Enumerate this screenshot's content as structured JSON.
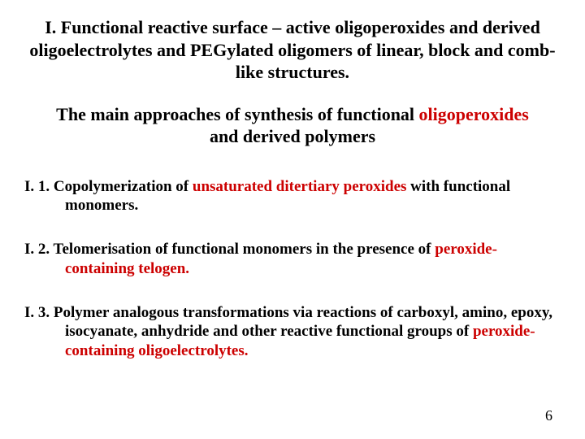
{
  "title": "I. Functional reactive surface – active oligoperoxides and derived oligoelectrolytes and PEGylated oligomers of linear, block and comb-like structures.",
  "subtitle_pre": "The main approaches of synthesis of functional ",
  "subtitle_red": "oligoperoxides",
  "subtitle_post": " and derived polymers",
  "item1_lead": "I. 1. Copolymerization of ",
  "item1_red": "unsaturated ditertiary peroxides",
  "item1_tail": " with functional monomers.",
  "item2_lead": "I. 2. Telomerisation of functional monomers in the presence of ",
  "item2_red": "peroxide-containing telogen.",
  "item3_lead": "I. 3. Polymer analogous transformations via reactions of carboxyl, amino, epoxy, isocyanate, anhydride and other reactive functional groups of ",
  "item3_red": "peroxide-containing oligoelectrolytes.",
  "page_number": "6",
  "colors": {
    "text": "#000000",
    "accent": "#cc0000",
    "background": "#ffffff"
  },
  "fontsize": {
    "title": 22,
    "subtitle": 22,
    "item": 19,
    "pagenum": 18
  }
}
